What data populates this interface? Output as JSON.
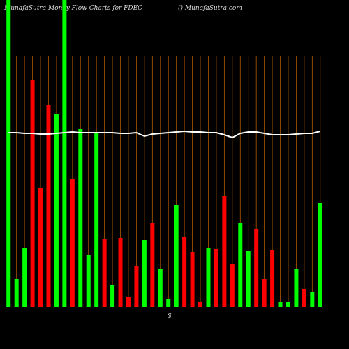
{
  "chart_data": {
    "type": "bar",
    "title": "MunafaSutra  Money Flow  Charts for FDEC",
    "subtitle": "() MunafaSutra.com",
    "x_axis_label": "$",
    "categories": [
      null,
      null,
      null,
      null,
      null,
      null,
      null,
      null,
      null,
      null,
      null,
      null,
      null,
      null,
      null,
      null,
      null,
      null,
      null,
      null,
      null,
      null,
      null,
      null,
      null,
      null,
      null,
      null,
      null,
      null,
      null,
      null,
      null,
      null,
      null,
      null,
      null,
      null,
      null,
      null
    ],
    "series": [
      {
        "type": "bar",
        "values": [
          440,
          41,
          85,
          325,
          171,
          290,
          277,
          440,
          183,
          255,
          74,
          250,
          97,
          31,
          99,
          14,
          59,
          96,
          121,
          55,
          12,
          147,
          100,
          79,
          8,
          85,
          83,
          159,
          62,
          121,
          80,
          112,
          41,
          82,
          8,
          8,
          54,
          26,
          21,
          149
        ],
        "colors": [
          "#00ff00",
          "#00ff00",
          "#00ff00",
          "#ff0000",
          "#ff0000",
          "#ff0000",
          "#00ff00",
          "#00ff00",
          "#ff0000",
          "#00ff00",
          "#00ff00",
          "#00ff00",
          "#ff0000",
          "#00ff00",
          "#ff0000",
          "#ff0000",
          "#ff0000",
          "#00ff00",
          "#ff0000",
          "#00ff00",
          "#00ff00",
          "#00ff00",
          "#ff0000",
          "#ff0000",
          "#ff0000",
          "#00ff00",
          "#ff0000",
          "#ff0000",
          "#ff0000",
          "#00ff00",
          "#00ff00",
          "#ff0000",
          "#ff0000",
          "#ff0000",
          "#00ff00",
          "#00ff00",
          "#00ff00",
          "#ff0000",
          "#00ff00",
          "#00ff00"
        ]
      },
      {
        "type": "line",
        "color": "#ffffff",
        "values": [
          250,
          250,
          249,
          249,
          248,
          248,
          249,
          250,
          251,
          250,
          250,
          250,
          250,
          250,
          249,
          249,
          250,
          245,
          248,
          249,
          250,
          251,
          252,
          251,
          251,
          250,
          250,
          247,
          243,
          249,
          251,
          251,
          249,
          247,
          247,
          247,
          248,
          249,
          249,
          252
        ]
      }
    ],
    "ylim": [
      0,
      440
    ],
    "grid": true,
    "grid_color": "#b35900"
  }
}
